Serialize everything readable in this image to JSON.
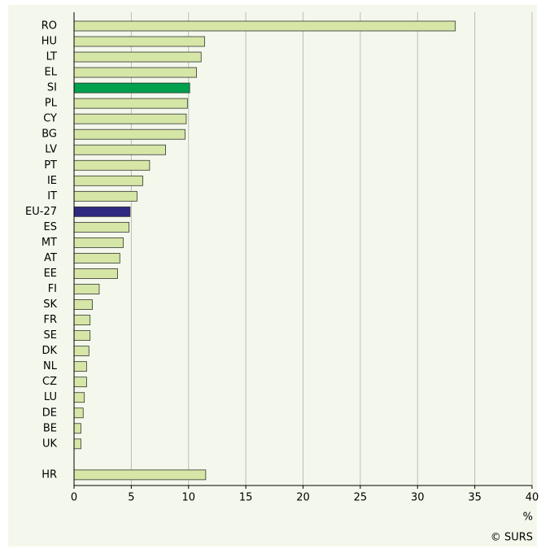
{
  "chart_data": {
    "type": "hbar",
    "categories": [
      "RO",
      "HU",
      "LT",
      "EL",
      "SI",
      "PL",
      "CY",
      "BG",
      "LV",
      "PT",
      "IE",
      "IT",
      "EU-27",
      "ES",
      "MT",
      "AT",
      "EE",
      "FI",
      "SK",
      "FR",
      "SE",
      "DK",
      "NL",
      "CZ",
      "LU",
      "DE",
      "BE",
      "UK",
      null,
      "HR"
    ],
    "values": [
      33.3,
      11.4,
      11.1,
      10.7,
      10.1,
      9.9,
      9.8,
      9.7,
      8.0,
      6.6,
      6.0,
      5.5,
      4.9,
      4.8,
      4.3,
      4.0,
      3.8,
      2.2,
      1.6,
      1.4,
      1.4,
      1.3,
      1.1,
      1.1,
      0.9,
      0.8,
      0.6,
      0.6,
      null,
      11.5
    ],
    "colors": [
      "#d5e6a6",
      "#d5e6a6",
      "#d5e6a6",
      "#d5e6a6",
      "#00a04f",
      "#d5e6a6",
      "#d5e6a6",
      "#d5e6a6",
      "#d5e6a6",
      "#d5e6a6",
      "#d5e6a6",
      "#d5e6a6",
      "#2e2a80",
      "#d5e6a6",
      "#d5e6a6",
      "#d5e6a6",
      "#d5e6a6",
      "#d5e6a6",
      "#d5e6a6",
      "#d5e6a6",
      "#d5e6a6",
      "#d5e6a6",
      "#d5e6a6",
      "#d5e6a6",
      "#d5e6a6",
      "#d5e6a6",
      "#d5e6a6",
      "#d5e6a6",
      null,
      "#d5e6a6"
    ],
    "xlim": [
      0,
      40
    ],
    "xticks": [
      0,
      5,
      10,
      15,
      20,
      25,
      30,
      35,
      40
    ],
    "grid": true,
    "x_label": "%",
    "source": "© SURS"
  }
}
